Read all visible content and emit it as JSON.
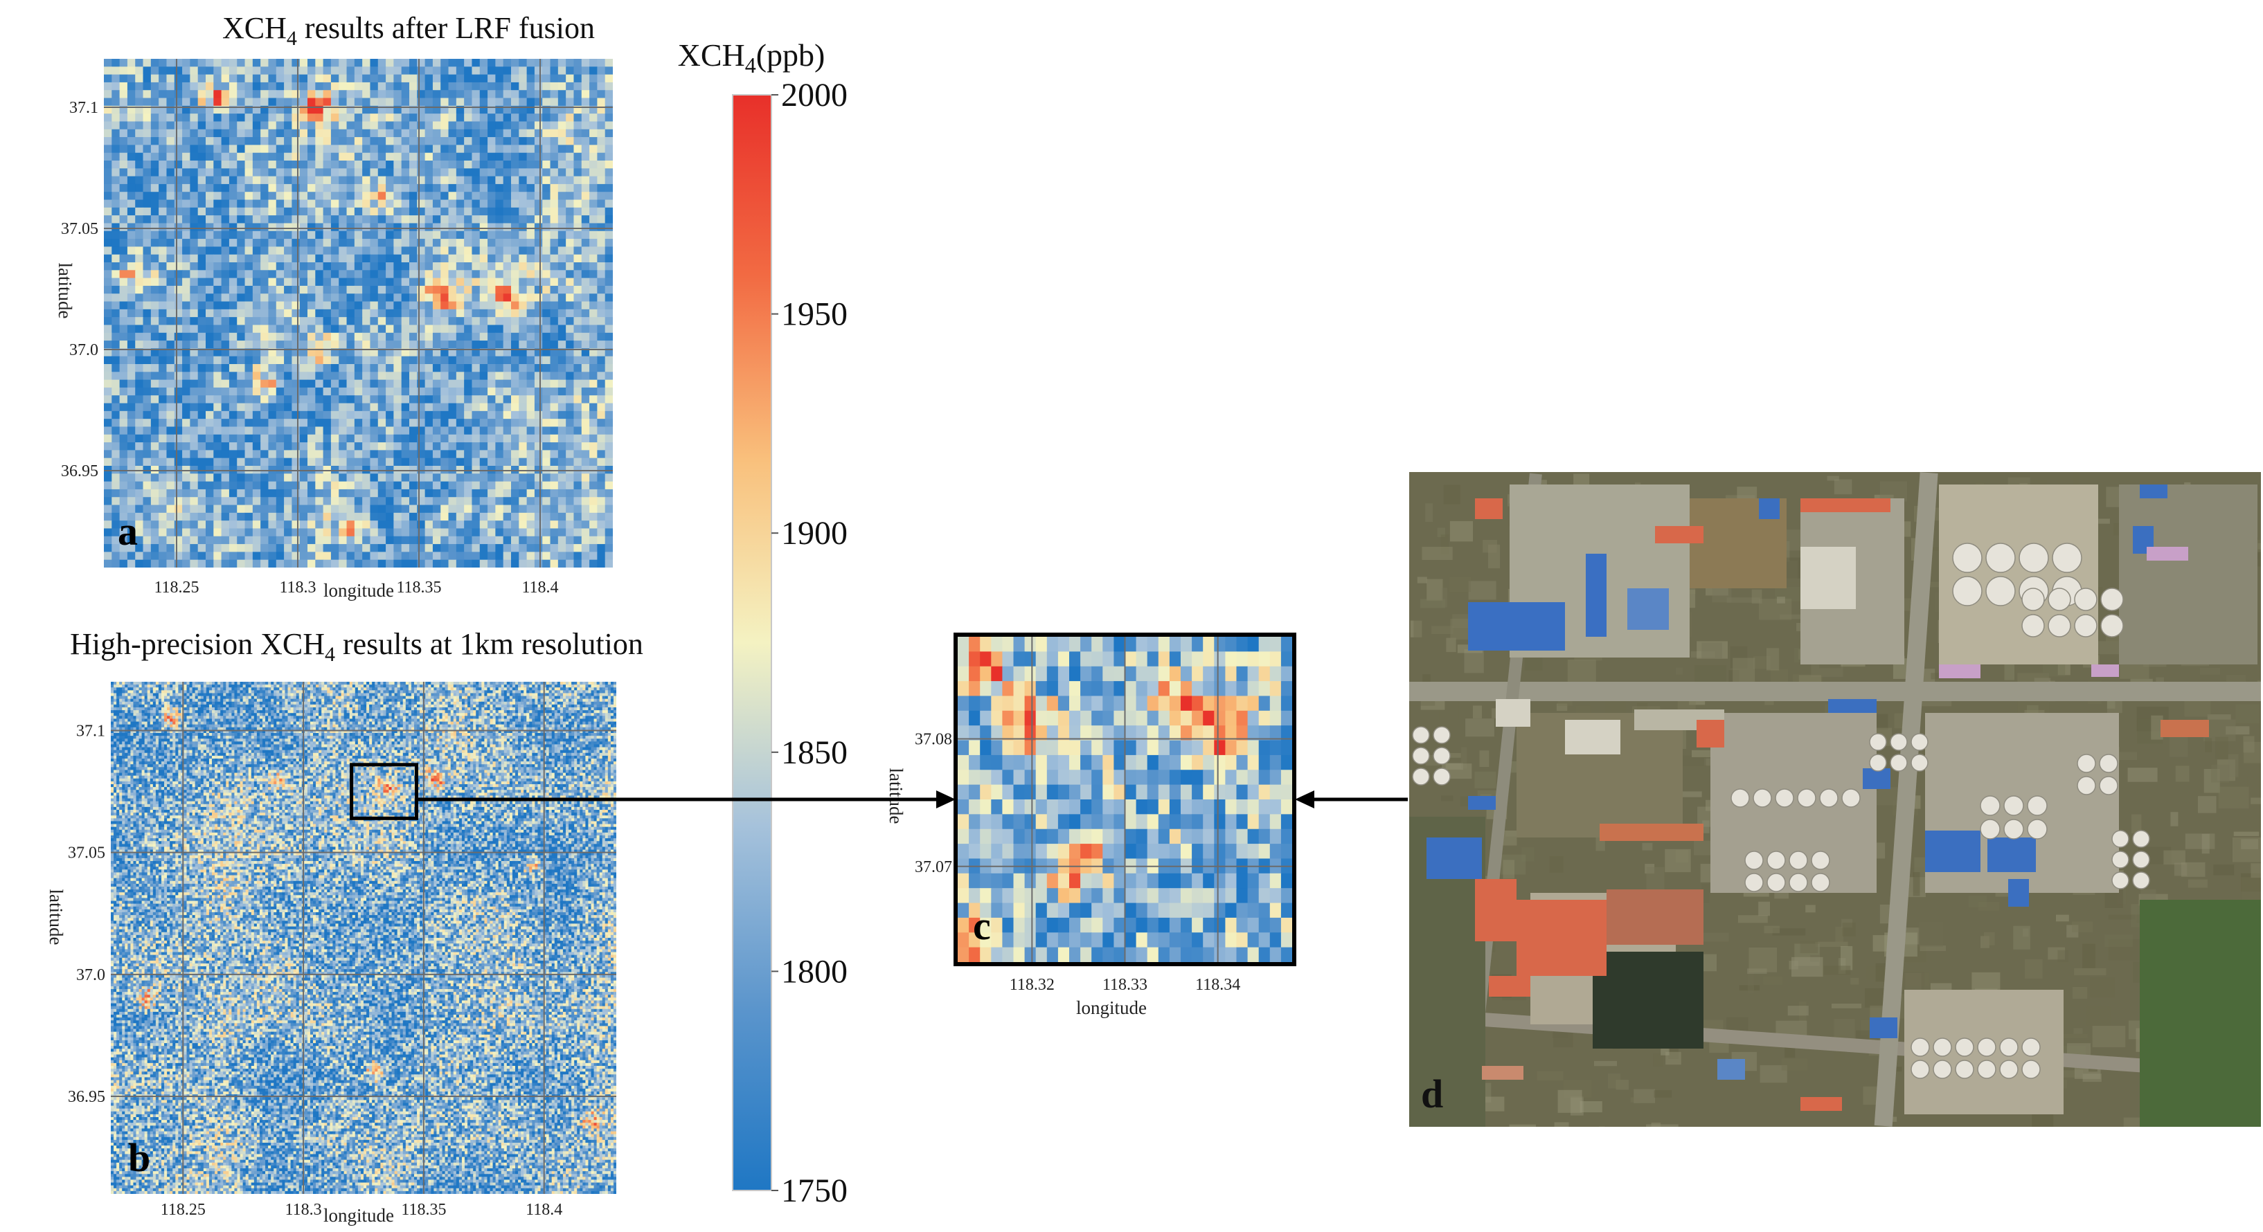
{
  "chart_data": [
    {
      "id": "a",
      "type": "heatmap",
      "title": "XCH₄ results after LRF fusion",
      "title_main": "XCH",
      "title_sub": "4",
      "title_rest": " results after LRF fusion",
      "xlabel": "longitude",
      "ylabel": "latitude",
      "xlim": [
        118.22,
        118.43
      ],
      "ylim": [
        36.91,
        37.12
      ],
      "xticks": [
        118.25,
        118.3,
        118.35,
        118.4
      ],
      "xtick_labels": [
        "118.25",
        "118.3",
        "118.35",
        "118.4"
      ],
      "yticks": [
        37.1,
        37.05,
        37.0,
        36.95
      ],
      "ytick_labels": [
        "37.1",
        "37.05",
        "37.0",
        "36.95"
      ],
      "grid": true,
      "panel_label": "a",
      "grid_cells": [
        65,
        65
      ],
      "value_range": [
        1750,
        2000
      ],
      "hotspots": [
        {
          "lon": 118.266,
          "lat": 37.104,
          "value": 1985
        },
        {
          "lon": 118.308,
          "lat": 37.1,
          "value": 2000
        },
        {
          "lon": 118.335,
          "lat": 37.062,
          "value": 1960
        },
        {
          "lon": 118.36,
          "lat": 37.022,
          "value": 1995
        },
        {
          "lon": 118.387,
          "lat": 37.02,
          "value": 2000
        },
        {
          "lon": 118.232,
          "lat": 37.03,
          "value": 1950
        },
        {
          "lon": 118.31,
          "lat": 37.0,
          "value": 1955
        },
        {
          "lon": 118.285,
          "lat": 36.985,
          "value": 1945
        },
        {
          "lon": 118.323,
          "lat": 36.925,
          "value": 1950
        }
      ]
    },
    {
      "id": "b",
      "type": "heatmap",
      "title": "High-precision XCH₄ results at 1km resolution",
      "title_main": "High-precision XCH",
      "title_sub": "4",
      "title_rest": " results at 1km resolution",
      "xlabel": "longitude",
      "ylabel": "latitude",
      "xlim": [
        118.22,
        118.43
      ],
      "ylim": [
        36.91,
        37.12
      ],
      "xticks": [
        118.25,
        118.3,
        118.35,
        118.4
      ],
      "xtick_labels": [
        "118.25",
        "118.3",
        "118.35",
        "118.4"
      ],
      "yticks": [
        37.1,
        37.05,
        37.0,
        36.95
      ],
      "ytick_labels": [
        "37.1",
        "37.05",
        "37.0",
        "36.95"
      ],
      "grid": true,
      "panel_label": "b",
      "grid_cells": [
        180,
        180
      ],
      "value_range": [
        1750,
        2000
      ],
      "highlight_box": {
        "lon_range": [
          118.32,
          118.347
        ],
        "lat_range": [
          37.064,
          37.086
        ]
      },
      "hotspots": [
        {
          "lon": 118.245,
          "lat": 37.105,
          "value": 1950
        },
        {
          "lon": 118.29,
          "lat": 37.08,
          "value": 1945
        },
        {
          "lon": 118.335,
          "lat": 37.077,
          "value": 1955
        },
        {
          "lon": 118.355,
          "lat": 37.08,
          "value": 1960
        },
        {
          "lon": 118.395,
          "lat": 37.045,
          "value": 1940
        },
        {
          "lon": 118.235,
          "lat": 36.99,
          "value": 1945
        },
        {
          "lon": 118.33,
          "lat": 36.96,
          "value": 1950
        },
        {
          "lon": 118.42,
          "lat": 36.94,
          "value": 1945
        }
      ]
    },
    {
      "id": "c",
      "type": "heatmap",
      "title": "",
      "xlabel": "longitude",
      "ylabel": "latitude",
      "xlim": [
        118.312,
        118.348
      ],
      "ylim": [
        37.0625,
        37.088
      ],
      "xticks": [
        118.32,
        118.33,
        118.34
      ],
      "xtick_labels": [
        "118.32",
        "118.33",
        "118.34"
      ],
      "yticks": [
        37.08,
        37.07
      ],
      "ytick_labels": [
        "37.08",
        "37.07"
      ],
      "grid": true,
      "panel_label": "c",
      "grid_cells": [
        30,
        22
      ],
      "value_range": [
        1750,
        2000
      ],
      "hotspots": [
        {
          "lon": 118.315,
          "lat": 37.086,
          "value": 1990
        },
        {
          "lon": 118.32,
          "lat": 37.081,
          "value": 2000
        },
        {
          "lon": 118.336,
          "lat": 37.083,
          "value": 2000
        },
        {
          "lon": 118.34,
          "lat": 37.08,
          "value": 2000
        },
        {
          "lon": 118.313,
          "lat": 37.064,
          "value": 1990
        },
        {
          "lon": 118.325,
          "lat": 37.07,
          "value": 1960
        }
      ]
    }
  ],
  "colorbar": {
    "title": "XCH₄(ppb)",
    "title_main": "XCH",
    "title_sub": "4",
    "title_rest": "(ppb)",
    "min": 1750,
    "max": 2000,
    "ticks": [
      2000,
      1950,
      1900,
      1850,
      1800,
      1750
    ],
    "tick_labels": [
      "2000",
      "1950",
      "1900",
      "1850",
      "1800",
      "1750"
    ],
    "colors": [
      "#1f77c4",
      "#5b95cc",
      "#a6c2db",
      "#f4f2c2",
      "#f9c07c",
      "#f26b43",
      "#e8302a"
    ]
  },
  "satellite": {
    "panel_label": "d"
  },
  "colors": {
    "grid_line": "#6b6b6b",
    "frame": "#000000",
    "arrow": "#000000"
  }
}
